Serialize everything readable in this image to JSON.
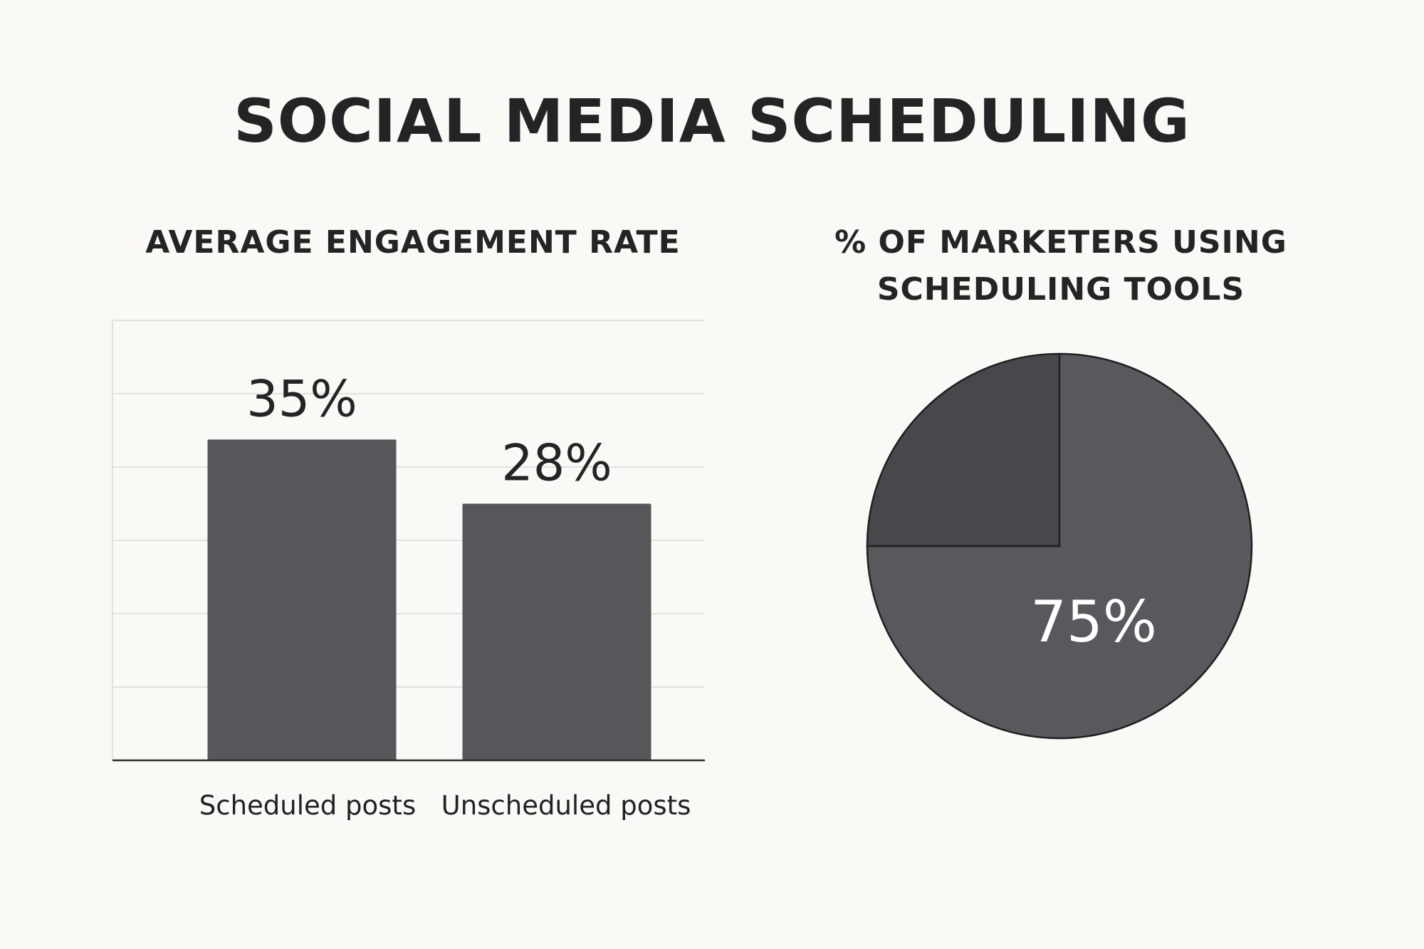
{
  "title": "SOCIAL MEDIA SCHEDULING",
  "chart_data": [
    {
      "type": "bar",
      "title": "AVERAGE ENGAGEMENT RATE",
      "categories": [
        "Scheduled posts",
        "Unscheduled posts"
      ],
      "values": [
        35,
        28
      ],
      "value_labels": [
        "35%",
        "28%"
      ],
      "ylim": [
        0,
        48
      ],
      "grid": true,
      "xlabel": "",
      "ylabel": "",
      "colors": {
        "bar": "#55575a",
        "grid": "#e2e1dd",
        "axis": "#2a2b2d"
      }
    },
    {
      "type": "pie",
      "title": "% OF MARKETERS USING SCHEDULING TOOLS",
      "slices": [
        {
          "label": "75%",
          "value": 75,
          "color": "#57595c"
        },
        {
          "label": "",
          "value": 25,
          "color": "#46484b"
        }
      ],
      "edge_color": "#1f2022"
    }
  ]
}
